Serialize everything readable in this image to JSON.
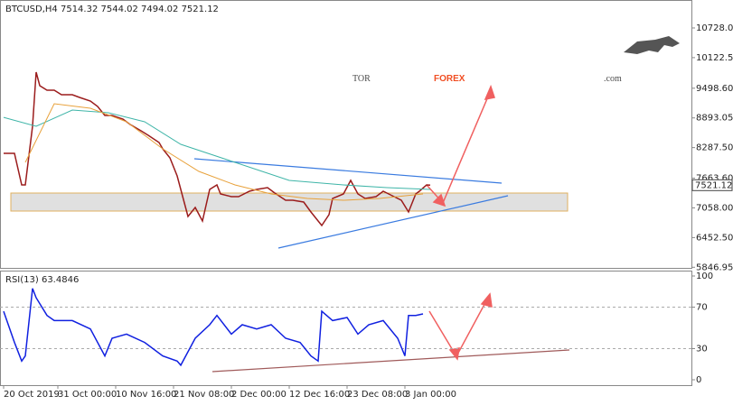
{
  "chart_data": [
    {
      "type": "line",
      "title": "BTCUSD,H4  7514.32 7544.02 7494.02 7521.12",
      "xlim": [
        -1,
        190.25
      ],
      "ylim": [
        5834,
        11298
      ],
      "yticks": [
        10728.05,
        {
          "value": 10122.5,
          "label": "10122.50"
        },
        {
          "value": 9498.6,
          "label": "9498.60"
        },
        8893.05,
        {
          "value": 8287.5,
          "label": "8287.50"
        },
        {
          "value": 7663.6,
          "label": "7663.60"
        },
        {
          "value": 7058,
          "label": "7058.00"
        },
        {
          "value": 6452.5,
          "label": "6452.50"
        },
        5846.95
      ],
      "last_price": 7521.12,
      "series": [
        {
          "color": "#9b1c1c",
          "x": [
            0,
            3,
            5,
            6,
            8,
            9,
            10,
            12,
            14,
            16,
            19,
            21,
            24,
            26,
            28,
            30,
            33,
            35,
            38,
            40,
            43,
            44,
            46,
            48,
            50,
            51,
            53,
            55,
            57,
            59,
            60,
            63,
            65,
            68,
            70,
            73,
            75,
            78,
            80,
            83,
            85,
            88,
            90,
            91,
            94,
            96,
            98,
            100,
            103,
            105,
            108,
            110,
            112,
            114,
            115,
            117,
            118
          ],
          "values": [
            8170,
            8170,
            7526,
            7526,
            8722,
            9826,
            9550,
            9458,
            9458,
            9366,
            9366,
            9311,
            9238,
            9127,
            8943,
            8943,
            8870,
            8759,
            8630,
            8538,
            8391,
            8262,
            8078,
            7710,
            7158,
            6882,
            7066,
            6790,
            7434,
            7526,
            7342,
            7287,
            7287,
            7398,
            7434,
            7471,
            7361,
            7214,
            7214,
            7177,
            6974,
            6698,
            6919,
            7250,
            7342,
            7618,
            7342,
            7250,
            7287,
            7398,
            7287,
            7214,
            6974,
            7342,
            7398,
            7526,
            7521
          ]
        },
        {
          "color": "#3fb5a8",
          "x": [
            0,
            9,
            19,
            29,
            39,
            49,
            64,
            79,
            94,
            106,
            118
          ],
          "values": [
            8905,
            8722,
            9053,
            8998,
            8814,
            8354,
            7986,
            7618,
            7526,
            7471,
            7434
          ]
        },
        {
          "color": "#e8a13a",
          "x": [
            6,
            14,
            24,
            34,
            44,
            54,
            64,
            74,
            84,
            94,
            104,
            116
          ],
          "values": [
            7986,
            9182,
            9090,
            8814,
            8262,
            7802,
            7526,
            7342,
            7250,
            7214,
            7250,
            7342
          ]
        }
      ]
    },
    {
      "type": "line",
      "title": "RSI(13) 63.4846",
      "xlim": [
        -1,
        190.25
      ],
      "ylim": [
        -5.2,
        105.2
      ],
      "yticks": [
        100,
        70,
        30,
        0
      ],
      "levels": [
        70,
        30
      ],
      "xticks": [
        {
          "value": 0,
          "label": "20 Oct 2019"
        },
        {
          "value": 15,
          "label": "31 Oct 00:00"
        },
        {
          "value": 31,
          "label": "10 Nov 16:00"
        },
        {
          "value": 47,
          "label": "21 Nov 08:00"
        },
        {
          "value": 63,
          "label": "2 Dec 00:00"
        },
        {
          "value": 79,
          "label": "12 Dec 16:00"
        },
        {
          "value": 95,
          "label": "23 Dec 08:00"
        },
        {
          "value": 111,
          "label": "3 Jan 00:00"
        }
      ],
      "series": [
        {
          "color": "#1020e0",
          "x": [
            0,
            3,
            5,
            6,
            8,
            9,
            12,
            14,
            19,
            24,
            28,
            30,
            34,
            39,
            44,
            48,
            49,
            53,
            57,
            59,
            63,
            66,
            70,
            74,
            78,
            82,
            85,
            87,
            88,
            91,
            95,
            98,
            101,
            105,
            109,
            111,
            112,
            114,
            116
          ],
          "values": [
            66,
            36,
            18,
            23,
            88,
            79,
            62,
            57,
            57,
            49,
            23,
            40,
            44,
            36,
            23,
            18,
            14,
            40,
            53,
            62,
            44,
            53,
            49,
            53,
            40,
            36,
            23,
            18,
            66,
            57,
            60,
            44,
            53,
            57,
            40,
            23,
            62,
            62,
            63.48
          ]
        }
      ]
    }
  ],
  "logo": {
    "left": "TOR",
    "middle": "FOREX",
    "right": ".com"
  }
}
